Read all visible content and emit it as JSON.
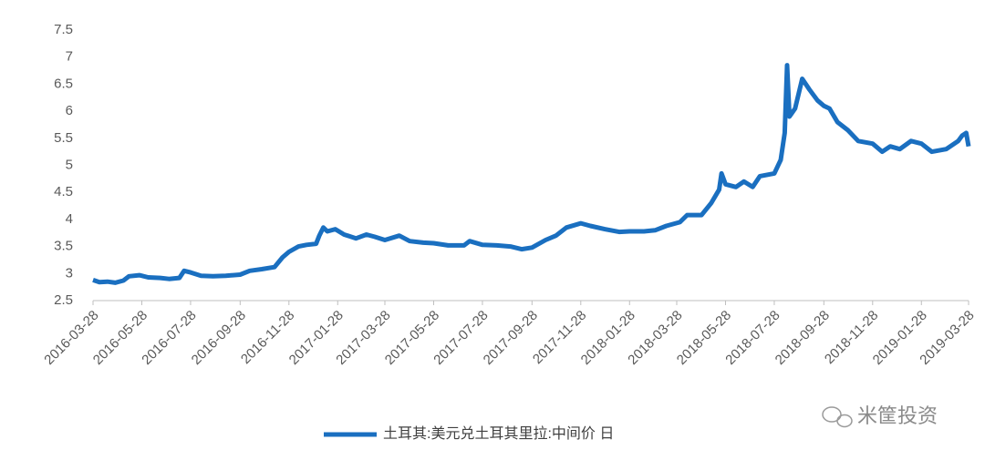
{
  "chart_data": {
    "type": "line",
    "x": [
      "2016-03-28",
      "2016-04-05",
      "2016-04-15",
      "2016-04-25",
      "2016-05-05",
      "2016-05-12",
      "2016-05-25",
      "2016-06-05",
      "2016-06-20",
      "2016-07-01",
      "2016-07-14",
      "2016-07-20",
      "2016-07-28",
      "2016-08-10",
      "2016-08-25",
      "2016-09-10",
      "2016-09-28",
      "2016-10-10",
      "2016-10-25",
      "2016-11-10",
      "2016-11-20",
      "2016-11-28",
      "2016-12-10",
      "2016-12-20",
      "2017-01-01",
      "2017-01-05",
      "2017-01-10",
      "2017-01-15",
      "2017-01-25",
      "2017-02-05",
      "2017-02-20",
      "2017-03-05",
      "2017-03-15",
      "2017-03-28",
      "2017-04-15",
      "2017-04-28",
      "2017-05-15",
      "2017-05-28",
      "2017-06-15",
      "2017-07-05",
      "2017-07-12",
      "2017-07-28",
      "2017-08-15",
      "2017-09-01",
      "2017-09-15",
      "2017-09-28",
      "2017-10-15",
      "2017-10-28",
      "2017-11-10",
      "2017-11-28",
      "2017-12-10",
      "2017-12-28",
      "2018-01-15",
      "2018-01-28",
      "2018-02-15",
      "2018-03-01",
      "2018-03-15",
      "2018-04-01",
      "2018-04-10",
      "2018-04-28",
      "2018-05-10",
      "2018-05-20",
      "2018-05-23",
      "2018-05-28",
      "2018-06-10",
      "2018-06-20",
      "2018-07-01",
      "2018-07-10",
      "2018-07-28",
      "2018-08-05",
      "2018-08-10",
      "2018-08-13",
      "2018-08-16",
      "2018-08-23",
      "2018-09-01",
      "2018-09-10",
      "2018-09-20",
      "2018-09-28",
      "2018-10-05",
      "2018-10-15",
      "2018-10-28",
      "2018-11-10",
      "2018-11-28",
      "2018-12-10",
      "2018-12-20",
      "2019-01-01",
      "2019-01-15",
      "2019-01-28",
      "2019-02-10",
      "2019-02-28",
      "2019-03-15",
      "2019-03-20",
      "2019-03-25",
      "2019-03-28"
    ],
    "series": [
      {
        "name": "土耳其:美元兑土耳其里拉:中间价 日",
        "color": "#1a6fc0",
        "values": [
          2.88,
          2.84,
          2.85,
          2.83,
          2.87,
          2.95,
          2.97,
          2.93,
          2.92,
          2.9,
          2.92,
          3.05,
          3.02,
          2.96,
          2.95,
          2.96,
          2.98,
          3.05,
          3.08,
          3.12,
          3.3,
          3.4,
          3.5,
          3.53,
          3.55,
          3.7,
          3.85,
          3.78,
          3.82,
          3.72,
          3.65,
          3.72,
          3.68,
          3.62,
          3.7,
          3.6,
          3.57,
          3.56,
          3.52,
          3.52,
          3.6,
          3.53,
          3.52,
          3.5,
          3.45,
          3.48,
          3.62,
          3.7,
          3.85,
          3.93,
          3.88,
          3.82,
          3.77,
          3.78,
          3.78,
          3.8,
          3.88,
          3.95,
          4.08,
          4.08,
          4.3,
          4.55,
          4.85,
          4.65,
          4.6,
          4.7,
          4.6,
          4.8,
          4.85,
          5.1,
          5.6,
          6.85,
          5.9,
          6.05,
          6.6,
          6.4,
          6.2,
          6.1,
          6.05,
          5.8,
          5.65,
          5.45,
          5.4,
          5.25,
          5.35,
          5.3,
          5.45,
          5.4,
          5.25,
          5.3,
          5.45,
          5.55,
          5.6,
          5.35
        ]
      }
    ],
    "xlim": [
      "2016-03-28",
      "2019-03-28"
    ],
    "xticks": [
      "2016-03-28",
      "2016-05-28",
      "2016-07-28",
      "2016-09-28",
      "2016-11-28",
      "2017-01-28",
      "2017-03-28",
      "2017-05-28",
      "2017-07-28",
      "2017-09-28",
      "2017-11-28",
      "2018-01-28",
      "2018-03-28",
      "2018-05-28",
      "2018-07-28",
      "2018-09-28",
      "2018-11-28",
      "2019-01-28",
      "2019-03-28"
    ],
    "ylim": [
      2.5,
      7.5
    ],
    "yticks": [
      2.5,
      3,
      3.5,
      4,
      4.5,
      5,
      5.5,
      6,
      6.5,
      7,
      7.5
    ],
    "grid": false,
    "legend": "bottom",
    "watermark": "米筐投资"
  }
}
